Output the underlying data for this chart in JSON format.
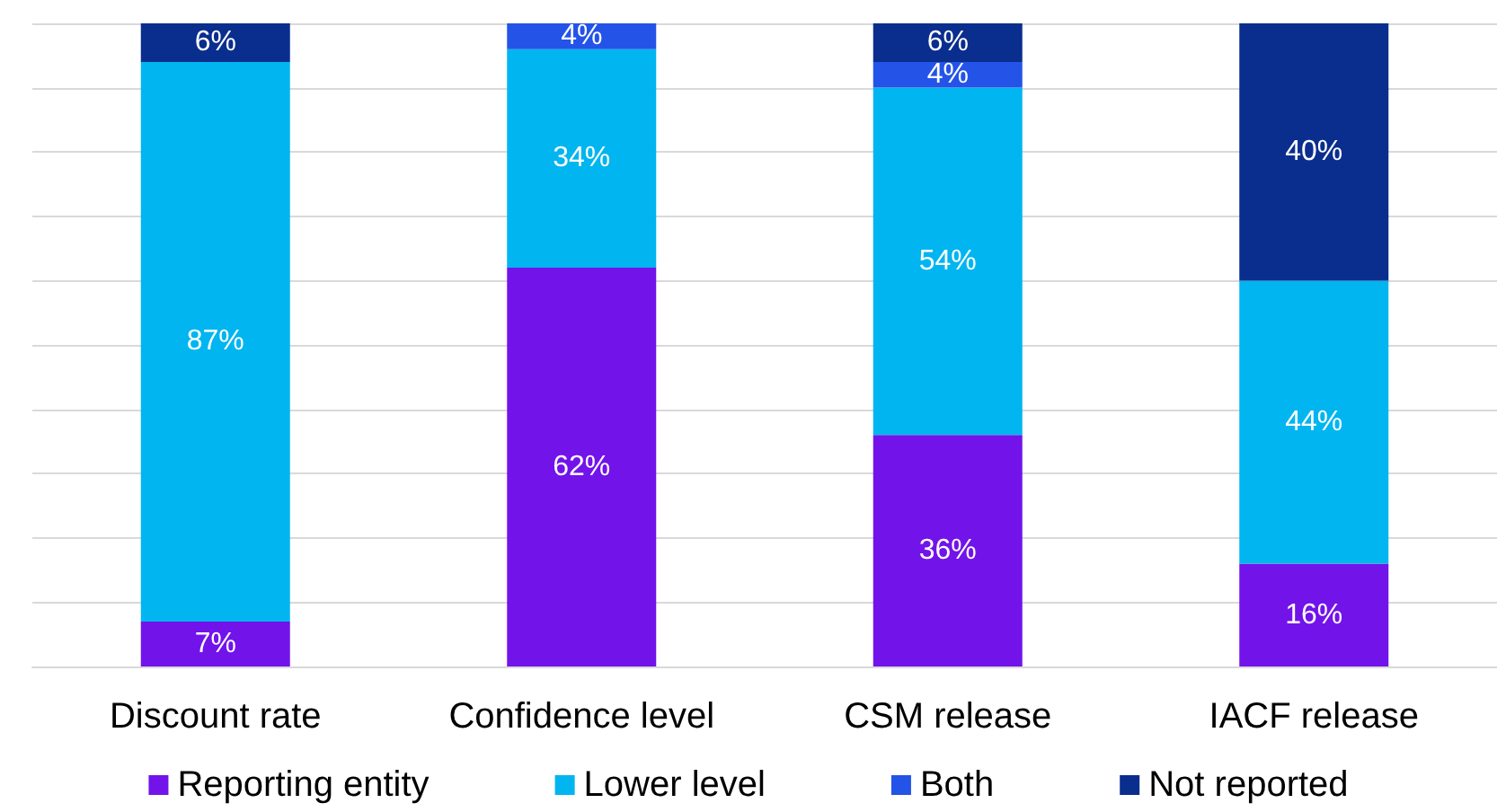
{
  "chart_data": {
    "type": "bar",
    "stacked": true,
    "categories": [
      "Discount rate",
      "Confidence level",
      "CSM release",
      "IACF release"
    ],
    "series": [
      {
        "name": "Reporting entity",
        "color": "#7213ea",
        "values": [
          7,
          62,
          36,
          16
        ],
        "value_labels": [
          "7%",
          "62%",
          "36%",
          "16%"
        ]
      },
      {
        "name": "Lower level",
        "color": "#00b5f0",
        "values": [
          87,
          34,
          54,
          44
        ],
        "value_labels": [
          "87%",
          "34%",
          "54%",
          "44%"
        ]
      },
      {
        "name": "Both",
        "color": "#2453e8",
        "values": [
          null,
          4,
          4,
          null
        ],
        "value_labels": [
          null,
          "4%",
          "4%",
          null
        ]
      },
      {
        "name": "Not reported",
        "color": "#0a2e8e",
        "values": [
          6,
          null,
          6,
          40
        ],
        "value_labels": [
          "6%",
          null,
          "6%",
          "40%"
        ]
      }
    ],
    "ylim": [
      0,
      100
    ],
    "yticks": [
      {
        "value": 0,
        "label": null
      },
      {
        "value": 10,
        "label": null
      },
      {
        "value": 20,
        "label": null
      },
      {
        "value": 30,
        "label": null
      },
      {
        "value": 40,
        "label": null
      },
      {
        "value": 50,
        "label": null
      },
      {
        "value": 60,
        "label": null
      },
      {
        "value": 70,
        "label": null
      },
      {
        "value": 80,
        "label": null
      },
      {
        "value": 90,
        "label": null
      },
      {
        "value": 100,
        "label": null
      }
    ],
    "grid": "y",
    "legend": "bottom",
    "tick_labels": "x"
  }
}
